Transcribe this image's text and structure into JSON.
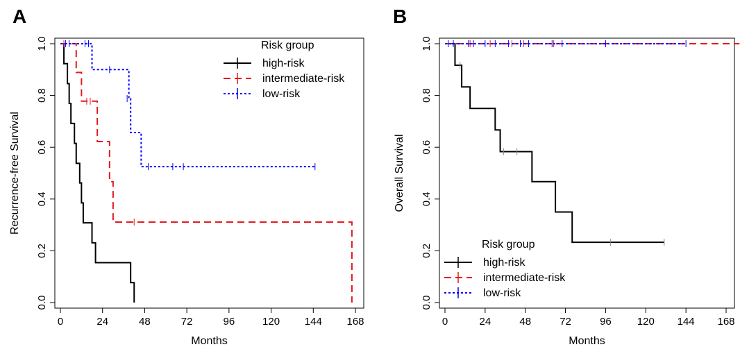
{
  "chart_data": [
    {
      "panel": "A",
      "type": "line",
      "subtype": "kaplan-meier",
      "xlabel": "Months",
      "ylabel": "Recurrence-free Survival",
      "xlim": [
        0,
        168
      ],
      "ylim": [
        0,
        1
      ],
      "xticks": [
        0,
        24,
        48,
        72,
        96,
        120,
        144,
        168
      ],
      "yticks": [
        "0.0",
        "0.2",
        "0.4",
        "0.6",
        "0.8",
        "1.0"
      ],
      "legend": {
        "title": "Risk group",
        "placement": "top-right"
      },
      "series": [
        {
          "name": "high-risk",
          "color": "#000000",
          "dash": "solid",
          "steps": [
            [
              0,
              1.0
            ],
            [
              2,
              0.923
            ],
            [
              4,
              0.846
            ],
            [
              5,
              0.769
            ],
            [
              6,
              0.692
            ],
            [
              8,
              0.615
            ],
            [
              9,
              0.538
            ],
            [
              11,
              0.462
            ],
            [
              12,
              0.385
            ],
            [
              13,
              0.308
            ],
            [
              18,
              0.231
            ],
            [
              20,
              0.154
            ],
            [
              40,
              0.077
            ],
            [
              42,
              0.0
            ]
          ],
          "censor": []
        },
        {
          "name": "intermediate-risk",
          "color": "#e41a1c",
          "dash": "dashed",
          "steps": [
            [
              0,
              1.0
            ],
            [
              9,
              0.889
            ],
            [
              12,
              0.778
            ],
            [
              21,
              0.622
            ],
            [
              28,
              0.467
            ],
            [
              30,
              0.311
            ],
            [
              166,
              0.0
            ]
          ],
          "censor": [
            [
              2,
              1.0
            ],
            [
              15,
              0.778
            ],
            [
              17,
              0.778
            ],
            [
              42,
              0.311
            ]
          ]
        },
        {
          "name": "low-risk",
          "color": "#0000ff",
          "dash": "dotted",
          "steps": [
            [
              0,
              1.0
            ],
            [
              18,
              0.9
            ],
            [
              39,
              0.788
            ],
            [
              40,
              0.657
            ],
            [
              46,
              0.525
            ]
          ],
          "censor": [
            [
              3,
              1.0
            ],
            [
              5,
              1.0
            ],
            [
              14,
              1.0
            ],
            [
              16,
              1.0
            ],
            [
              28,
              0.9
            ],
            [
              38,
              0.788
            ],
            [
              50,
              0.525
            ],
            [
              64,
              0.525
            ],
            [
              70,
              0.525
            ],
            [
              145,
              0.525
            ]
          ],
          "end": 145
        }
      ]
    },
    {
      "panel": "B",
      "type": "line",
      "subtype": "kaplan-meier",
      "xlabel": "Months",
      "ylabel": "Overall Survival",
      "xlim": [
        0,
        168
      ],
      "ylim": [
        0,
        1
      ],
      "xticks": [
        0,
        24,
        48,
        72,
        96,
        120,
        144,
        168
      ],
      "yticks": [
        "0.0",
        "0.2",
        "0.4",
        "0.6",
        "0.8",
        "1.0"
      ],
      "legend": {
        "title": "Risk group",
        "placement": "bottom-left"
      },
      "series": [
        {
          "name": "high-risk",
          "color": "#000000",
          "dash": "solid",
          "steps": [
            [
              0,
              1.0
            ],
            [
              6,
              0.917
            ],
            [
              10,
              0.833
            ],
            [
              15,
              0.75
            ],
            [
              30,
              0.667
            ],
            [
              33,
              0.583
            ],
            [
              52,
              0.467
            ],
            [
              66,
              0.35
            ],
            [
              76,
              0.233
            ]
          ],
          "censor": [
            [
              9,
              0.917
            ],
            [
              35,
              0.583
            ],
            [
              43,
              0.583
            ],
            [
              99,
              0.233
            ],
            [
              131,
              0.233
            ]
          ],
          "end": 131
        },
        {
          "name": "intermediate-risk",
          "color": "#e41a1c",
          "dash": "dashed",
          "steps": [
            [
              0,
              1.0
            ]
          ],
          "censor": [
            [
              15,
              1.0
            ],
            [
              27,
              1.0
            ],
            [
              40,
              1.0
            ],
            [
              47,
              1.0
            ],
            [
              65,
              1.0
            ]
          ],
          "end": 181
        },
        {
          "name": "low-risk",
          "color": "#0000ff",
          "dash": "dotted",
          "steps": [
            [
              0,
              1.0
            ]
          ],
          "censor": [
            [
              2,
              1.0
            ],
            [
              5,
              1.0
            ],
            [
              14,
              1.0
            ],
            [
              17,
              1.0
            ],
            [
              24,
              1.0
            ],
            [
              30,
              1.0
            ],
            [
              38,
              1.0
            ],
            [
              45,
              1.0
            ],
            [
              50,
              1.0
            ],
            [
              64,
              1.0
            ],
            [
              70,
              1.0
            ],
            [
              96,
              1.0
            ],
            [
              144,
              1.0
            ]
          ],
          "end": 144
        }
      ]
    }
  ]
}
